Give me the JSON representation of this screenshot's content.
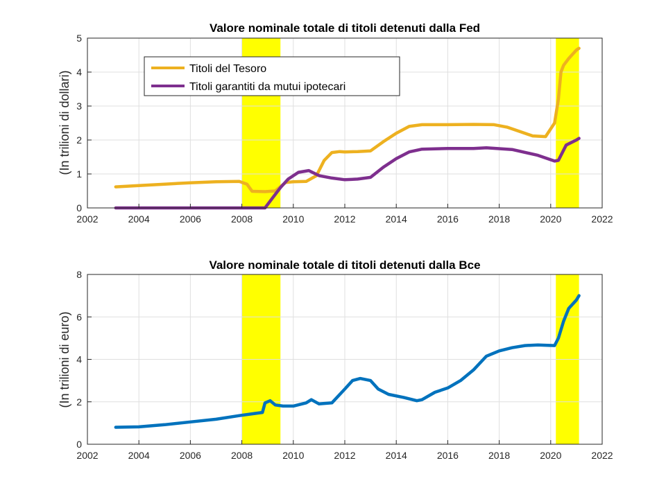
{
  "chart_data": [
    {
      "type": "line",
      "title": "Valore nominale totale di titoli detenuti dalla Fed",
      "xlabel": "",
      "ylabel": "(In trilioni di dollari)",
      "xlim": [
        2002,
        2022
      ],
      "ylim": [
        0,
        5
      ],
      "xticks": [
        2002,
        2004,
        2006,
        2008,
        2010,
        2012,
        2014,
        2016,
        2018,
        2020,
        2022
      ],
      "yticks": [
        0,
        1,
        2,
        3,
        4,
        5
      ],
      "grid": true,
      "legend": "top-left",
      "shaded_periods": [
        [
          2008.0,
          2009.5
        ],
        [
          2020.2,
          2021.1
        ]
      ],
      "shade_color": "#ffff00",
      "series": [
        {
          "name": "Titoli del Tesoro",
          "color": "#edb120",
          "x": [
            2003.1,
            2004,
            2005,
            2006,
            2007,
            2007.9,
            2008.2,
            2008.4,
            2008.9,
            2009.3,
            2009.7,
            2010.0,
            2010.5,
            2010.9,
            2011.2,
            2011.5,
            2011.8,
            2012.0,
            2012.5,
            2013.0,
            2013.5,
            2014.0,
            2014.5,
            2015.0,
            2016.0,
            2017.0,
            2017.8,
            2018.3,
            2018.8,
            2019.3,
            2019.8,
            2020.15,
            2020.3,
            2020.4,
            2020.5,
            2020.7,
            2021.0,
            2021.1
          ],
          "y": [
            0.62,
            0.66,
            0.7,
            0.74,
            0.77,
            0.78,
            0.7,
            0.49,
            0.48,
            0.5,
            0.75,
            0.77,
            0.78,
            0.95,
            1.4,
            1.63,
            1.66,
            1.65,
            1.66,
            1.68,
            1.95,
            2.2,
            2.4,
            2.45,
            2.45,
            2.46,
            2.45,
            2.38,
            2.25,
            2.12,
            2.1,
            2.5,
            3.2,
            4.0,
            4.2,
            4.4,
            4.65,
            4.7
          ]
        },
        {
          "name": "Titoli garantiti da mutui ipotecari",
          "color": "#7e2f8e",
          "x": [
            2003.1,
            2005,
            2007,
            2008.9,
            2009.2,
            2009.5,
            2009.8,
            2010.2,
            2010.6,
            2011.0,
            2011.5,
            2012.0,
            2012.5,
            2013.0,
            2013.5,
            2014.0,
            2014.5,
            2015.0,
            2016.0,
            2017.0,
            2017.5,
            2018.5,
            2019.5,
            2020.15,
            2020.3,
            2020.6,
            2021.0,
            2021.1
          ],
          "y": [
            0,
            0,
            0,
            0,
            0.3,
            0.6,
            0.85,
            1.05,
            1.1,
            0.95,
            0.88,
            0.83,
            0.85,
            0.9,
            1.2,
            1.45,
            1.65,
            1.73,
            1.75,
            1.75,
            1.77,
            1.72,
            1.55,
            1.38,
            1.4,
            1.85,
            2.0,
            2.05
          ]
        }
      ]
    },
    {
      "type": "line",
      "title": "Valore nominale totale di titoli detenuti dalla Bce",
      "xlabel": "",
      "ylabel": "(In trilioni di euro)",
      "xlim": [
        2002,
        2022
      ],
      "ylim": [
        0,
        8
      ],
      "xticks": [
        2002,
        2004,
        2006,
        2008,
        2010,
        2012,
        2014,
        2016,
        2018,
        2020,
        2022
      ],
      "yticks": [
        0,
        2,
        4,
        6,
        8
      ],
      "grid": true,
      "legend": "none",
      "shaded_periods": [
        [
          2008.0,
          2009.5
        ],
        [
          2020.2,
          2021.1
        ]
      ],
      "shade_color": "#ffff00",
      "series": [
        {
          "color": "#0072bd",
          "x": [
            2003.1,
            2004,
            2005,
            2006,
            2007,
            2007.9,
            2008.5,
            2008.8,
            2008.9,
            2009.1,
            2009.3,
            2009.6,
            2010.0,
            2010.5,
            2010.7,
            2011.0,
            2011.5,
            2012.0,
            2012.3,
            2012.6,
            2013.0,
            2013.3,
            2013.7,
            2014.3,
            2014.8,
            2015.0,
            2015.5,
            2016.0,
            2016.5,
            2017.0,
            2017.5,
            2018.0,
            2018.5,
            2019.0,
            2019.5,
            2020.15,
            2020.3,
            2020.5,
            2020.7,
            2021.0,
            2021.1
          ],
          "y": [
            0.8,
            0.82,
            0.92,
            1.05,
            1.18,
            1.35,
            1.45,
            1.5,
            1.95,
            2.05,
            1.85,
            1.8,
            1.8,
            1.95,
            2.1,
            1.9,
            1.95,
            2.6,
            3.0,
            3.1,
            3.0,
            2.6,
            2.35,
            2.2,
            2.05,
            2.1,
            2.45,
            2.65,
            3.0,
            3.5,
            4.15,
            4.4,
            4.55,
            4.65,
            4.68,
            4.65,
            5.0,
            5.8,
            6.4,
            6.8,
            7.0
          ]
        }
      ]
    }
  ]
}
